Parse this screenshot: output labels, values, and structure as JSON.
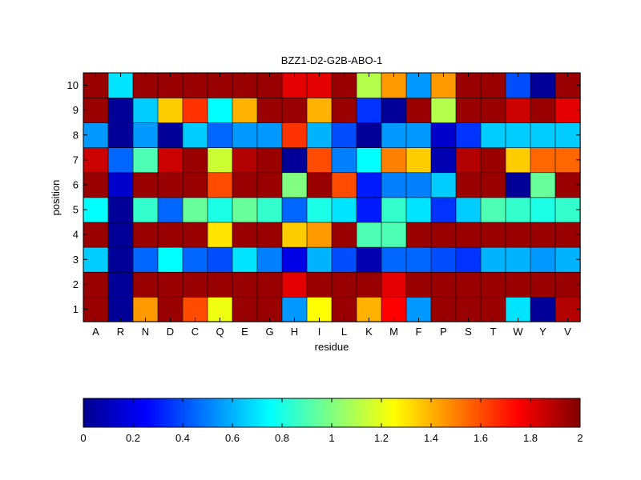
{
  "chart_data": {
    "type": "heatmap",
    "title": "BZZ1-D2-G2B-ABO-1",
    "xlabel": "residue",
    "ylabel": "position",
    "x_categories": [
      "A",
      "R",
      "N",
      "D",
      "C",
      "Q",
      "E",
      "G",
      "H",
      "I",
      "L",
      "K",
      "M",
      "F",
      "P",
      "S",
      "T",
      "W",
      "Y",
      "V"
    ],
    "y_categories": [
      "1",
      "2",
      "3",
      "4",
      "5",
      "6",
      "7",
      "8",
      "9",
      "10"
    ],
    "colormap": "jet",
    "clim": [
      0,
      2
    ],
    "colorbar": {
      "placement": "bottom",
      "ticks": [
        0,
        0.2,
        0.4,
        0.6,
        0.8,
        1,
        1.2,
        1.4,
        1.6,
        1.8,
        2
      ],
      "tick_labels": [
        "0",
        "0.2",
        "0.4",
        "0.6",
        "0.8",
        "1",
        "1.2",
        "1.4",
        "1.6",
        "1.8",
        "2"
      ]
    },
    "values": [
      [
        1.95,
        0.05,
        1.45,
        1.95,
        1.6,
        1.22,
        1.95,
        1.95,
        0.55,
        1.25,
        1.95,
        1.4,
        1.75,
        0.55,
        1.95,
        1.95,
        1.95,
        0.7,
        0.05,
        1.9
      ],
      [
        1.95,
        0.05,
        1.95,
        1.95,
        1.95,
        1.95,
        1.95,
        1.95,
        1.8,
        1.95,
        1.95,
        1.95,
        1.8,
        1.95,
        1.95,
        1.95,
        1.95,
        1.95,
        1.95,
        1.95
      ],
      [
        0.65,
        0.05,
        0.45,
        0.75,
        0.45,
        0.4,
        0.7,
        0.5,
        0.2,
        0.6,
        0.4,
        0.1,
        0.45,
        0.45,
        0.4,
        0.35,
        0.6,
        0.6,
        0.55,
        0.6
      ],
      [
        1.95,
        0.05,
        1.95,
        1.95,
        1.95,
        1.3,
        1.95,
        1.95,
        1.35,
        1.45,
        1.95,
        0.9,
        0.9,
        1.95,
        1.95,
        1.95,
        1.95,
        1.95,
        1.95,
        1.95
      ],
      [
        0.75,
        0.05,
        0.85,
        0.45,
        0.95,
        0.8,
        0.95,
        0.85,
        0.45,
        0.8,
        0.7,
        0.3,
        0.85,
        0.7,
        0.35,
        0.65,
        0.9,
        0.85,
        0.8,
        0.85
      ],
      [
        1.95,
        0.15,
        1.95,
        1.95,
        1.95,
        1.6,
        1.95,
        1.95,
        1.0,
        1.95,
        1.6,
        0.3,
        0.5,
        0.5,
        0.65,
        1.95,
        1.95,
        0.05,
        0.95,
        1.95
      ],
      [
        1.85,
        0.45,
        0.9,
        1.85,
        1.95,
        1.15,
        1.9,
        1.95,
        0.05,
        1.6,
        0.5,
        0.75,
        1.5,
        1.35,
        0.1,
        1.9,
        1.95,
        1.35,
        1.55,
        1.55
      ],
      [
        0.55,
        0.05,
        0.55,
        0.05,
        0.65,
        0.45,
        0.55,
        0.55,
        1.65,
        0.6,
        0.4,
        0.05,
        0.55,
        0.55,
        0.15,
        0.35,
        0.65,
        0.65,
        0.65,
        0.65
      ],
      [
        1.95,
        0.05,
        0.65,
        1.35,
        1.65,
        0.75,
        1.4,
        1.95,
        1.95,
        1.4,
        1.95,
        0.35,
        0.05,
        1.95,
        1.1,
        1.95,
        1.95,
        1.85,
        1.95,
        1.8
      ],
      [
        1.95,
        0.7,
        1.95,
        1.95,
        1.95,
        1.95,
        1.95,
        1.95,
        1.8,
        1.8,
        1.95,
        1.1,
        1.45,
        0.55,
        1.45,
        1.95,
        1.95,
        0.4,
        0.05,
        1.95
      ]
    ]
  }
}
